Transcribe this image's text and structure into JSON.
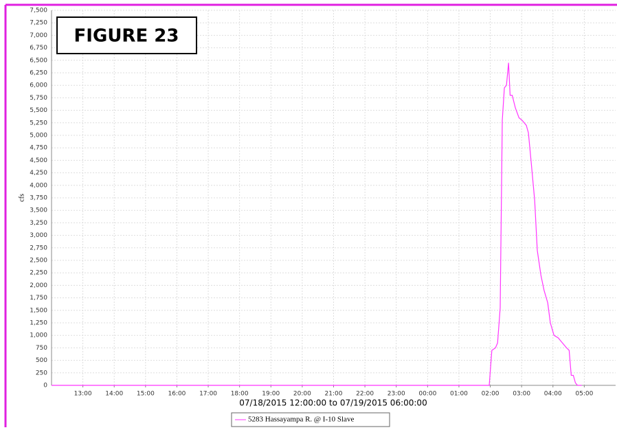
{
  "chart_data": {
    "type": "line",
    "figure_label": "FIGURE 23",
    "y_label": "cfs",
    "x_label": "07/18/2015 12:00:00 to 07/19/2015 06:00:00",
    "xlim": [
      "2015-07-18T12:00",
      "2015-07-19T06:00"
    ],
    "xticks": [
      {
        "value": "2015-07-18T13:00",
        "label": "13:00"
      },
      {
        "value": "2015-07-18T14:00",
        "label": "14:00"
      },
      {
        "value": "2015-07-18T15:00",
        "label": "15:00"
      },
      {
        "value": "2015-07-18T16:00",
        "label": "16:00"
      },
      {
        "value": "2015-07-18T17:00",
        "label": "17:00"
      },
      {
        "value": "2015-07-18T18:00",
        "label": "18:00"
      },
      {
        "value": "2015-07-18T19:00",
        "label": "19:00"
      },
      {
        "value": "2015-07-18T20:00",
        "label": "20:00"
      },
      {
        "value": "2015-07-18T21:00",
        "label": "21:00"
      },
      {
        "value": "2015-07-18T22:00",
        "label": "22:00"
      },
      {
        "value": "2015-07-18T23:00",
        "label": "23:00"
      },
      {
        "value": "2015-07-19T00:00",
        "label": "00:00"
      },
      {
        "value": "2015-07-19T01:00",
        "label": "01:00"
      },
      {
        "value": "2015-07-19T02:00",
        "label": "02:00"
      },
      {
        "value": "2015-07-19T03:00",
        "label": "03:00"
      },
      {
        "value": "2015-07-19T04:00",
        "label": "04:00"
      },
      {
        "value": "2015-07-19T05:00",
        "label": "05:00"
      }
    ],
    "ylim": [
      0,
      7500
    ],
    "yticks": [
      0,
      250,
      500,
      750,
      {
        "value": 1000,
        "label": "1,000"
      },
      {
        "value": 1250,
        "label": "1,250"
      },
      {
        "value": 1500,
        "label": "1,500"
      },
      {
        "value": 1750,
        "label": "1,750"
      },
      {
        "value": 2000,
        "label": "2,000"
      },
      {
        "value": 2250,
        "label": "2,250"
      },
      {
        "value": 2500,
        "label": "2,500"
      },
      {
        "value": 2750,
        "label": "2,750"
      },
      {
        "value": 3000,
        "label": "3,000"
      },
      {
        "value": 3250,
        "label": "3,250"
      },
      {
        "value": 3500,
        "label": "3,500"
      },
      {
        "value": 3750,
        "label": "3,750"
      },
      {
        "value": 4000,
        "label": "4,000"
      },
      {
        "value": 4250,
        "label": "4,250"
      },
      {
        "value": 4500,
        "label": "4,500"
      },
      {
        "value": 4750,
        "label": "4,750"
      },
      {
        "value": 5000,
        "label": "5,000"
      },
      {
        "value": 5250,
        "label": "5,250"
      },
      {
        "value": 5500,
        "label": "5,500"
      },
      {
        "value": 5750,
        "label": "5,750"
      },
      {
        "value": 6000,
        "label": "6,000"
      },
      {
        "value": 6250,
        "label": "6,250"
      },
      {
        "value": 6500,
        "label": "6,500"
      },
      {
        "value": 6750,
        "label": "6,750"
      },
      {
        "value": 7000,
        "label": "7,000"
      },
      {
        "value": 7250,
        "label": "7,250"
      },
      {
        "value": 7500,
        "label": "7,500"
      }
    ],
    "grid": true,
    "x": [
      "2015-07-18T12:00",
      "2015-07-19T01:58",
      "2015-07-19T02:03",
      "2015-07-19T02:10",
      "2015-07-19T02:14",
      "2015-07-19T02:19",
      "2015-07-19T02:23",
      "2015-07-19T02:27",
      "2015-07-19T02:31",
      "2015-07-19T02:35",
      "2015-07-19T02:38",
      "2015-07-19T02:42",
      "2015-07-19T02:48",
      "2015-07-19T02:55",
      "2015-07-19T03:01",
      "2015-07-19T03:09",
      "2015-07-19T03:13",
      "2015-07-19T03:18",
      "2015-07-19T03:25",
      "2015-07-19T03:30",
      "2015-07-19T03:37",
      "2015-07-19T03:43",
      "2015-07-19T03:50",
      "2015-07-19T03:55",
      "2015-07-19T04:02",
      "2015-07-19T04:10",
      "2015-07-19T04:18",
      "2015-07-19T04:26",
      "2015-07-19T04:31",
      "2015-07-19T04:35",
      "2015-07-19T04:39",
      "2015-07-19T04:43",
      "2015-07-19T04:47",
      "2015-07-19T04:55"
    ],
    "series": [
      {
        "name": "5283 Hassayampa R. @ I-10 Slave",
        "color": "#ff33ff",
        "values": [
          0,
          0,
          700,
          750,
          850,
          1550,
          5300,
          5950,
          6000,
          6450,
          5800,
          5800,
          5550,
          5350,
          5300,
          5200,
          5050,
          4500,
          3700,
          2700,
          2200,
          1900,
          1650,
          1250,
          1000,
          950,
          850,
          750,
          700,
          200,
          200,
          50,
          0,
          0
        ]
      }
    ]
  }
}
